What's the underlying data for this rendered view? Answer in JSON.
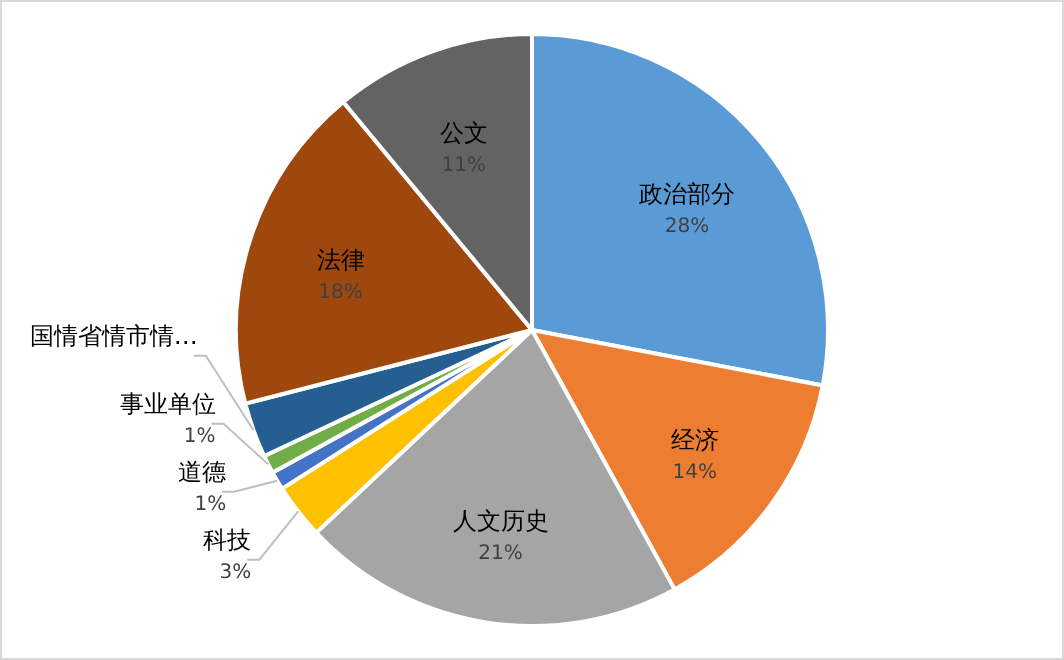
{
  "chart_data": {
    "type": "pie",
    "categories": [
      "政治部分",
      "经济",
      "人文历史",
      "科技",
      "道德",
      "事业单位",
      "国情省情市情…",
      "法律",
      "公文"
    ],
    "values": [
      28,
      14,
      21,
      3,
      1,
      1,
      3,
      18,
      11
    ],
    "value_labels": [
      "28%",
      "14%",
      "21%",
      "3%",
      "1%",
      "1%",
      null,
      "18%",
      "11%"
    ],
    "colors": [
      "#5b9bd5",
      "#ed7d31",
      "#a5a5a5",
      "#ffc000",
      "#4472c4",
      "#70ad47",
      "#255e91",
      "#9e480e",
      "#636363"
    ]
  }
}
